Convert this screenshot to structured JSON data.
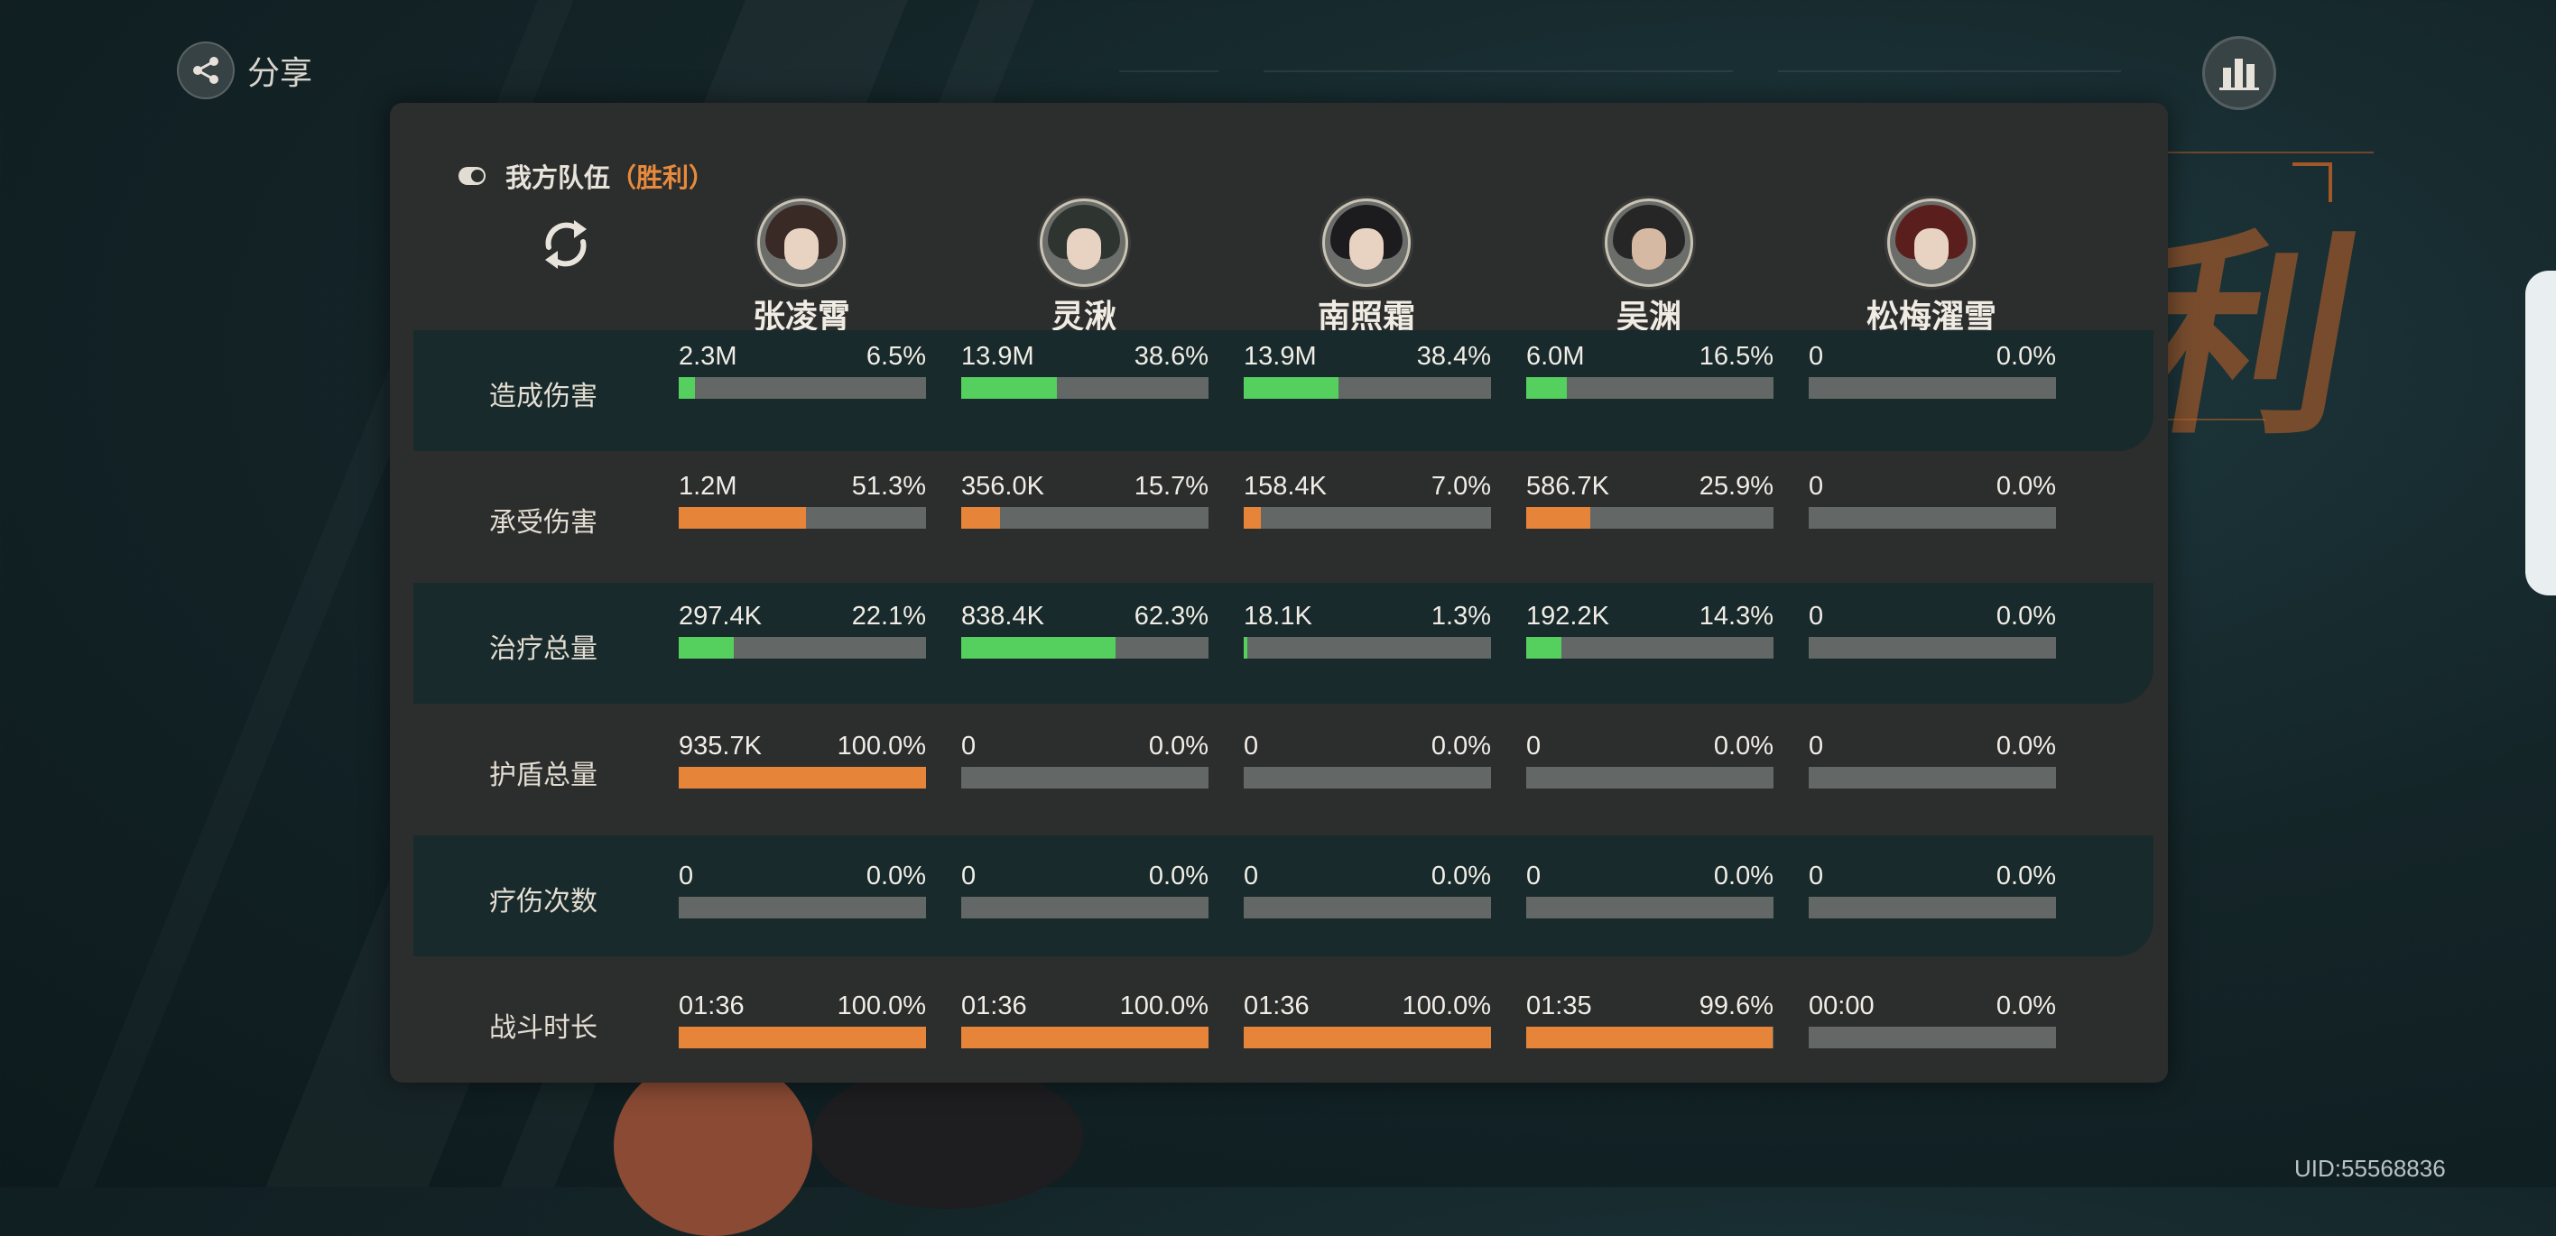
{
  "top_bar": {
    "share_label": "分享"
  },
  "team": {
    "title": "我方队伍",
    "result": "（胜利）"
  },
  "heroes": [
    {
      "name": "张凌霄"
    },
    {
      "name": "灵湫"
    },
    {
      "name": "南照霜"
    },
    {
      "name": "吴渊"
    },
    {
      "name": "松梅濯雪"
    }
  ],
  "stats": [
    {
      "label": "造成伤害",
      "bar_color": "#55cf5e",
      "values": [
        {
          "value": "2.3M",
          "percent": "6.5%",
          "fill": 6.5
        },
        {
          "value": "13.9M",
          "percent": "38.6%",
          "fill": 38.6
        },
        {
          "value": "13.9M",
          "percent": "38.4%",
          "fill": 38.4
        },
        {
          "value": "6.0M",
          "percent": "16.5%",
          "fill": 16.5
        },
        {
          "value": "0",
          "percent": "0.0%",
          "fill": 0
        }
      ]
    },
    {
      "label": "承受伤害",
      "bar_color": "#e68539",
      "values": [
        {
          "value": "1.2M",
          "percent": "51.3%",
          "fill": 51.3
        },
        {
          "value": "356.0K",
          "percent": "15.7%",
          "fill": 15.7
        },
        {
          "value": "158.4K",
          "percent": "7.0%",
          "fill": 7.0
        },
        {
          "value": "586.7K",
          "percent": "25.9%",
          "fill": 25.9
        },
        {
          "value": "0",
          "percent": "0.0%",
          "fill": 0
        }
      ]
    },
    {
      "label": "治疗总量",
      "bar_color": "#55cf5e",
      "values": [
        {
          "value": "297.4K",
          "percent": "22.1%",
          "fill": 22.1
        },
        {
          "value": "838.4K",
          "percent": "62.3%",
          "fill": 62.3
        },
        {
          "value": "18.1K",
          "percent": "1.3%",
          "fill": 1.3
        },
        {
          "value": "192.2K",
          "percent": "14.3%",
          "fill": 14.3
        },
        {
          "value": "0",
          "percent": "0.0%",
          "fill": 0
        }
      ]
    },
    {
      "label": "护盾总量",
      "bar_color": "#e68539",
      "values": [
        {
          "value": "935.7K",
          "percent": "100.0%",
          "fill": 100
        },
        {
          "value": "0",
          "percent": "0.0%",
          "fill": 0
        },
        {
          "value": "0",
          "percent": "0.0%",
          "fill": 0
        },
        {
          "value": "0",
          "percent": "0.0%",
          "fill": 0
        },
        {
          "value": "0",
          "percent": "0.0%",
          "fill": 0
        }
      ]
    },
    {
      "label": "疗伤次数",
      "bar_color": "#55cf5e",
      "values": [
        {
          "value": "0",
          "percent": "0.0%",
          "fill": 0
        },
        {
          "value": "0",
          "percent": "0.0%",
          "fill": 0
        },
        {
          "value": "0",
          "percent": "0.0%",
          "fill": 0
        },
        {
          "value": "0",
          "percent": "0.0%",
          "fill": 0
        },
        {
          "value": "0",
          "percent": "0.0%",
          "fill": 0
        }
      ]
    },
    {
      "label": "战斗时长",
      "bar_color": "#e68539",
      "values": [
        {
          "value": "01:36",
          "percent": "100.0%",
          "fill": 100
        },
        {
          "value": "01:36",
          "percent": "100.0%",
          "fill": 100
        },
        {
          "value": "01:36",
          "percent": "100.0%",
          "fill": 100
        },
        {
          "value": "01:35",
          "percent": "99.6%",
          "fill": 99.6
        },
        {
          "value": "00:00",
          "percent": "0.0%",
          "fill": 0
        }
      ]
    }
  ],
  "uid": "UID:55568836",
  "icons": {
    "share": "share-icon",
    "stats": "bar-chart-icon",
    "refresh": "refresh-icon"
  }
}
